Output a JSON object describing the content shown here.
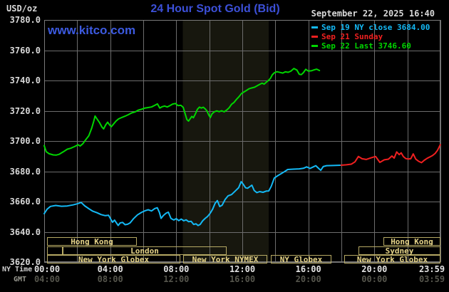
{
  "header": {
    "unit": "USD/oz",
    "title": "24 Hour Spot Gold (Bid)",
    "date": "September 22, 2025 16:40",
    "watermark": "www.kitco.com"
  },
  "legend": {
    "entries": [
      {
        "text": "Sep 19 NY close 3684.00",
        "color": "#14b9f5"
      },
      {
        "text": "Sep 21 Sunday",
        "color": "#f02020"
      },
      {
        "text": "Sep 22 Last 3746.60",
        "color": "#00d600"
      }
    ]
  },
  "colors": {
    "background": "#000000",
    "grid": "#6c6c6c",
    "plot_border": "#7a7a7a",
    "band": "#17170e",
    "title_blue": "#3c50d8",
    "watermark_blue": "#3c5ae0",
    "text_white": "#d9d9d9",
    "tick_ny": "#e2e2e2",
    "tick_gmt": "#55554c",
    "ny_time_label": "#cfcfcf",
    "gmt_label": "#9b9b92",
    "session_box_border": "#b6a964",
    "session_box_text": "#e6d488"
  },
  "chart_data": {
    "type": "line",
    "title": "24 Hour Spot Gold (Bid)",
    "x_axis": {
      "ny_label": "NY Time",
      "gmt_label": "GMT",
      "min_hour": 0,
      "max_hour": 24,
      "gridline_every_hours": 2,
      "ticks": [
        {
          "hour": 0,
          "ny": "00:00",
          "gmt": "04:00"
        },
        {
          "hour": 4,
          "ny": "04:00",
          "gmt": "08:00"
        },
        {
          "hour": 8,
          "ny": "08:00",
          "gmt": "12:00"
        },
        {
          "hour": 12,
          "ny": "12:00",
          "gmt": "16:00"
        },
        {
          "hour": 16,
          "ny": "16:00",
          "gmt": "20:00"
        },
        {
          "hour": 20,
          "ny": "20:00",
          "gmt": "00:00"
        },
        {
          "hour": 24,
          "ny": "23:59",
          "gmt": "03:59"
        }
      ]
    },
    "y_axis": {
      "unit": "USD/oz",
      "min": 3620,
      "max": 3780,
      "tick_step": 20
    },
    "nymex_highlight_hours": [
      8.4,
      13.6
    ],
    "series": [
      {
        "name": "Sep 19 NY close",
        "color": "#14b9f5",
        "close": 3684.0,
        "points": [
          [
            0,
            3652
          ],
          [
            0.18,
            3655
          ],
          [
            0.38,
            3656.8
          ],
          [
            0.7,
            3657.4
          ],
          [
            1.05,
            3656.9
          ],
          [
            1.4,
            3657.1
          ],
          [
            1.75,
            3657.8
          ],
          [
            2.0,
            3658.5
          ],
          [
            2.24,
            3659.4
          ],
          [
            2.45,
            3657.2
          ],
          [
            2.7,
            3655.3
          ],
          [
            2.95,
            3653.6
          ],
          [
            3.2,
            3652.6
          ],
          [
            3.45,
            3651.4
          ],
          [
            3.7,
            3650.7
          ],
          [
            3.9,
            3650.9
          ],
          [
            4.02,
            3648.6
          ],
          [
            4.14,
            3646.3
          ],
          [
            4.26,
            3647.7
          ],
          [
            4.38,
            3645.8
          ],
          [
            4.48,
            3644.2
          ],
          [
            4.6,
            3645.9
          ],
          [
            4.75,
            3646.2
          ],
          [
            4.9,
            3644.7
          ],
          [
            5.05,
            3645
          ],
          [
            5.2,
            3645.9
          ],
          [
            5.42,
            3648.8
          ],
          [
            5.65,
            3651.2
          ],
          [
            5.9,
            3652.9
          ],
          [
            6.12,
            3654
          ],
          [
            6.3,
            3654.6
          ],
          [
            6.5,
            3653.8
          ],
          [
            6.7,
            3655.4
          ],
          [
            6.85,
            3655.9
          ],
          [
            6.98,
            3652.8
          ],
          [
            7.08,
            3648.9
          ],
          [
            7.22,
            3650.8
          ],
          [
            7.38,
            3652.3
          ],
          [
            7.52,
            3653
          ],
          [
            7.68,
            3648.8
          ],
          [
            7.85,
            3647.8
          ],
          [
            8.0,
            3648.7
          ],
          [
            8.15,
            3647.4
          ],
          [
            8.3,
            3648.4
          ],
          [
            8.45,
            3647.3
          ],
          [
            8.6,
            3647.9
          ],
          [
            8.75,
            3646.7
          ],
          [
            8.9,
            3646.9
          ],
          [
            9.05,
            3644.9
          ],
          [
            9.2,
            3645.3
          ],
          [
            9.32,
            3644.2
          ],
          [
            9.45,
            3644.9
          ],
          [
            9.6,
            3647.3
          ],
          [
            9.75,
            3648.9
          ],
          [
            9.9,
            3650.2
          ],
          [
            10.05,
            3652.2
          ],
          [
            10.2,
            3654.9
          ],
          [
            10.35,
            3658.8
          ],
          [
            10.49,
            3660.6
          ],
          [
            10.63,
            3656.7
          ],
          [
            10.78,
            3657.6
          ],
          [
            10.96,
            3661.4
          ],
          [
            11.14,
            3663.8
          ],
          [
            11.35,
            3664.6
          ],
          [
            11.57,
            3666.9
          ],
          [
            11.78,
            3669.2
          ],
          [
            11.93,
            3673.2
          ],
          [
            12.05,
            3671.5
          ],
          [
            12.2,
            3669.1
          ],
          [
            12.32,
            3668.8
          ],
          [
            12.45,
            3669.8
          ],
          [
            12.58,
            3670.8
          ],
          [
            12.72,
            3667.3
          ],
          [
            12.88,
            3665.9
          ],
          [
            13.05,
            3666.6
          ],
          [
            13.25,
            3666.1
          ],
          [
            13.45,
            3666.9
          ],
          [
            13.6,
            3667
          ],
          [
            13.75,
            3670
          ],
          [
            13.94,
            3675.6
          ],
          [
            14.16,
            3677.2
          ],
          [
            14.5,
            3679.4
          ],
          [
            14.75,
            3681.2
          ],
          [
            15.1,
            3681.4
          ],
          [
            15.45,
            3681.6
          ],
          [
            15.7,
            3682
          ],
          [
            15.9,
            3682.9
          ],
          [
            16.1,
            3681.9
          ],
          [
            16.3,
            3682.9
          ],
          [
            16.45,
            3683.7
          ],
          [
            16.6,
            3682.1
          ],
          [
            16.75,
            3680.6
          ],
          [
            16.9,
            3683.1
          ],
          [
            17.1,
            3683.7
          ],
          [
            17.5,
            3683.8
          ],
          [
            17.95,
            3684
          ]
        ]
      },
      {
        "name": "Sep 21 Sunday",
        "color": "#f02020",
        "points": [
          [
            17.98,
            3684
          ],
          [
            18.3,
            3684.3
          ],
          [
            18.6,
            3684.7
          ],
          [
            18.82,
            3686.2
          ],
          [
            19.03,
            3689.8
          ],
          [
            19.25,
            3688.3
          ],
          [
            19.5,
            3687.8
          ],
          [
            19.8,
            3688.9
          ],
          [
            20.07,
            3689.8
          ],
          [
            20.33,
            3685.9
          ],
          [
            20.6,
            3687.6
          ],
          [
            20.85,
            3688
          ],
          [
            21.06,
            3690.1
          ],
          [
            21.2,
            3688.7
          ],
          [
            21.35,
            3692.8
          ],
          [
            21.5,
            3691
          ],
          [
            21.62,
            3692.2
          ],
          [
            21.75,
            3689.8
          ],
          [
            21.9,
            3688.4
          ],
          [
            22.05,
            3688.1
          ],
          [
            22.2,
            3688.3
          ],
          [
            22.35,
            3691.5
          ],
          [
            22.5,
            3688.1
          ],
          [
            22.68,
            3686.6
          ],
          [
            22.85,
            3685.7
          ],
          [
            23.02,
            3687.3
          ],
          [
            23.2,
            3688.6
          ],
          [
            23.38,
            3689.6
          ],
          [
            23.52,
            3690.4
          ],
          [
            23.68,
            3691.8
          ],
          [
            23.82,
            3693.8
          ],
          [
            23.92,
            3695.9
          ],
          [
            23.99,
            3697.6
          ]
        ]
      },
      {
        "name": "Sep 22",
        "color": "#00d600",
        "last": 3746.6,
        "points": [
          [
            0,
            3697
          ],
          [
            0.12,
            3693
          ],
          [
            0.3,
            3691.6
          ],
          [
            0.55,
            3690.8
          ],
          [
            0.72,
            3690.7
          ],
          [
            0.9,
            3691.2
          ],
          [
            1.15,
            3692.8
          ],
          [
            1.4,
            3694.6
          ],
          [
            1.6,
            3695.2
          ],
          [
            1.85,
            3696.4
          ],
          [
            2.05,
            3697.5
          ],
          [
            2.18,
            3696.7
          ],
          [
            2.35,
            3698.3
          ],
          [
            2.5,
            3700.6
          ],
          [
            2.7,
            3703.5
          ],
          [
            2.88,
            3708.5
          ],
          [
            3.0,
            3713
          ],
          [
            3.08,
            3716.5
          ],
          [
            3.2,
            3714.6
          ],
          [
            3.35,
            3712.2
          ],
          [
            3.5,
            3709.2
          ],
          [
            3.6,
            3708
          ],
          [
            3.72,
            3710.6
          ],
          [
            3.84,
            3712.4
          ],
          [
            3.95,
            3710.8
          ],
          [
            4.06,
            3709.4
          ],
          [
            4.2,
            3711.2
          ],
          [
            4.35,
            3713.2
          ],
          [
            4.5,
            3714.6
          ],
          [
            4.7,
            3715.6
          ],
          [
            4.9,
            3716.4
          ],
          [
            5.1,
            3717.4
          ],
          [
            5.3,
            3718.6
          ],
          [
            5.5,
            3719.2
          ],
          [
            5.7,
            3720.4
          ],
          [
            5.9,
            3721
          ],
          [
            6.1,
            3721.8
          ],
          [
            6.3,
            3722.1
          ],
          [
            6.5,
            3722.5
          ],
          [
            6.7,
            3723.6
          ],
          [
            6.86,
            3724.5
          ],
          [
            7.0,
            3721.8
          ],
          [
            7.15,
            3722.7
          ],
          [
            7.3,
            3723.1
          ],
          [
            7.45,
            3722.5
          ],
          [
            7.6,
            3723.3
          ],
          [
            7.78,
            3724.4
          ],
          [
            7.95,
            3724.8
          ],
          [
            8.1,
            3723.4
          ],
          [
            8.28,
            3723.6
          ],
          [
            8.42,
            3722.2
          ],
          [
            8.54,
            3718
          ],
          [
            8.64,
            3714.2
          ],
          [
            8.74,
            3713.2
          ],
          [
            8.84,
            3714.7
          ],
          [
            8.94,
            3716.3
          ],
          [
            9.04,
            3715.4
          ],
          [
            9.16,
            3718
          ],
          [
            9.28,
            3721
          ],
          [
            9.4,
            3722.4
          ],
          [
            9.52,
            3721.8
          ],
          [
            9.64,
            3722.3
          ],
          [
            9.76,
            3721.2
          ],
          [
            9.86,
            3719.8
          ],
          [
            9.96,
            3717.4
          ],
          [
            10.06,
            3715.5
          ],
          [
            10.16,
            3717.9
          ],
          [
            10.3,
            3719.3
          ],
          [
            10.45,
            3719.9
          ],
          [
            10.6,
            3719.4
          ],
          [
            10.75,
            3720
          ],
          [
            10.9,
            3719.3
          ],
          [
            11.05,
            3720.4
          ],
          [
            11.2,
            3722
          ],
          [
            11.35,
            3724.3
          ],
          [
            11.5,
            3725.5
          ],
          [
            11.65,
            3727.6
          ],
          [
            11.8,
            3729.3
          ],
          [
            11.95,
            3731.4
          ],
          [
            12.1,
            3732.4
          ],
          [
            12.25,
            3733.4
          ],
          [
            12.4,
            3734.5
          ],
          [
            12.55,
            3735
          ],
          [
            12.75,
            3735.6
          ],
          [
            12.95,
            3736.8
          ],
          [
            13.1,
            3737.7
          ],
          [
            13.2,
            3738.2
          ],
          [
            13.32,
            3737.6
          ],
          [
            13.45,
            3738.8
          ],
          [
            13.58,
            3740
          ],
          [
            13.7,
            3741.4
          ],
          [
            13.82,
            3743.8
          ],
          [
            13.95,
            3745.2
          ],
          [
            14.1,
            3745.8
          ],
          [
            14.28,
            3745.3
          ],
          [
            14.45,
            3744.9
          ],
          [
            14.6,
            3745.7
          ],
          [
            14.78,
            3745.4
          ],
          [
            14.95,
            3746.2
          ],
          [
            15.12,
            3747.9
          ],
          [
            15.3,
            3746.9
          ],
          [
            15.45,
            3744.1
          ],
          [
            15.58,
            3743.9
          ],
          [
            15.7,
            3745.2
          ],
          [
            15.84,
            3747.4
          ],
          [
            16.0,
            3746.2
          ],
          [
            16.18,
            3746.4
          ],
          [
            16.35,
            3747
          ],
          [
            16.5,
            3747.5
          ],
          [
            16.67,
            3746.6
          ]
        ]
      }
    ],
    "sessions": {
      "rows": [
        {
          "boxes": [
            {
              "label": "Hong Kong",
              "start": 0.18,
              "end": 5.6
            },
            {
              "label": "Hong Kong",
              "start": 20.55,
              "end": 24
            }
          ]
        },
        {
          "boxes": [
            {
              "label": "",
              "start": 0.18,
              "end": 1.12
            },
            {
              "label": "London",
              "start": 1.12,
              "end": 11.05
            },
            {
              "label": "Sydney",
              "start": 19.03,
              "end": 24
            }
          ]
        },
        {
          "boxes": [
            {
              "label": "New York Globex",
              "start": 0.18,
              "end": 8.24
            },
            {
              "label": "New York NYMEX",
              "start": 8.42,
              "end": 13.51
            },
            {
              "label": "NY Globex",
              "start": 13.72,
              "end": 17.4
            },
            {
              "label": "New York Globex",
              "start": 18.17,
              "end": 24
            }
          ]
        }
      ]
    }
  }
}
